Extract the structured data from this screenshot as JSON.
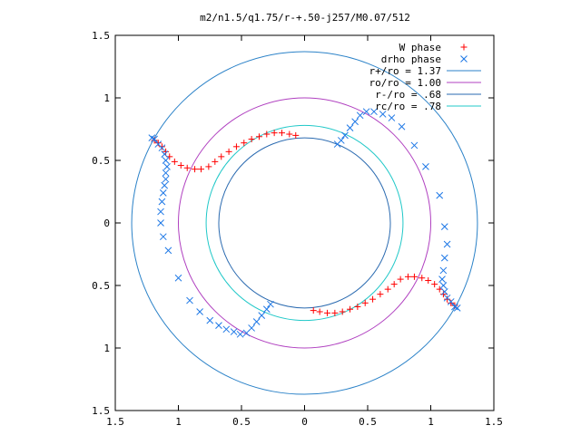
{
  "chart_data": {
    "type": "scatter",
    "title": "m2/n1.5/q1.75/r-+.50-j257/M0.07/512",
    "xlabel": "",
    "ylabel": "",
    "xlim": [
      -1.5,
      1.5
    ],
    "ylim": [
      -1.5,
      1.5
    ],
    "x_ticks": [
      -1.5,
      -1,
      -0.5,
      0,
      0.5,
      1,
      1.5
    ],
    "y_ticks": [
      -1.5,
      -1,
      -0.5,
      0,
      0.5,
      1,
      1.5
    ],
    "x_tick_labels": [
      "1.5",
      "1",
      "0.5",
      "0",
      "0.5",
      "1",
      "1.5"
    ],
    "y_tick_labels": [
      "1.5",
      "1",
      "0.5",
      "0",
      "0.5",
      "1",
      "1.5"
    ],
    "grid": false,
    "legend_position": "top-right",
    "circles": [
      {
        "name": "r+/ro = 1.37",
        "radius": 1.37,
        "color": "#2b82c8"
      },
      {
        "name": "ro/ro = 1.00",
        "radius": 1.0,
        "color": "#b040c0"
      },
      {
        "name": "r-/ro = .68",
        "radius": 0.68,
        "color": "#2a6ab0"
      },
      {
        "name": "rc/ro = .78",
        "radius": 0.78,
        "color": "#20c8c8"
      }
    ],
    "series": [
      {
        "name": "W phase",
        "marker": "plus",
        "color": "#ff0000",
        "points": [
          [
            -1.19,
            0.66
          ],
          [
            -1.16,
            0.64
          ],
          [
            -1.13,
            0.61
          ],
          [
            -1.1,
            0.57
          ],
          [
            -1.07,
            0.53
          ],
          [
            -1.03,
            0.49
          ],
          [
            -0.98,
            0.46
          ],
          [
            -0.93,
            0.44
          ],
          [
            -0.87,
            0.43
          ],
          [
            -0.82,
            0.43
          ],
          [
            -0.76,
            0.45
          ],
          [
            -0.71,
            0.49
          ],
          [
            -0.66,
            0.53
          ],
          [
            -0.6,
            0.57
          ],
          [
            -0.54,
            0.61
          ],
          [
            -0.48,
            0.64
          ],
          [
            -0.42,
            0.67
          ],
          [
            -0.36,
            0.69
          ],
          [
            -0.3,
            0.71
          ],
          [
            -0.24,
            0.72
          ],
          [
            -0.18,
            0.72
          ],
          [
            -0.12,
            0.71
          ],
          [
            -0.07,
            0.7
          ],
          [
            1.19,
            -0.66
          ],
          [
            1.16,
            -0.64
          ],
          [
            1.13,
            -0.61
          ],
          [
            1.1,
            -0.57
          ],
          [
            1.07,
            -0.53
          ],
          [
            1.03,
            -0.49
          ],
          [
            0.98,
            -0.46
          ],
          [
            0.93,
            -0.44
          ],
          [
            0.87,
            -0.43
          ],
          [
            0.82,
            -0.43
          ],
          [
            0.76,
            -0.45
          ],
          [
            0.71,
            -0.49
          ],
          [
            0.66,
            -0.53
          ],
          [
            0.6,
            -0.57
          ],
          [
            0.54,
            -0.61
          ],
          [
            0.48,
            -0.64
          ],
          [
            0.42,
            -0.67
          ],
          [
            0.36,
            -0.69
          ],
          [
            0.3,
            -0.71
          ],
          [
            0.24,
            -0.72
          ],
          [
            0.18,
            -0.72
          ],
          [
            0.12,
            -0.71
          ],
          [
            0.07,
            -0.7
          ]
        ]
      },
      {
        "name": "drho phase",
        "marker": "x",
        "color": "#1e78e6",
        "points": [
          [
            -1.21,
            0.68
          ],
          [
            -1.19,
            0.67
          ],
          [
            -1.16,
            0.63
          ],
          [
            -1.13,
            0.6
          ],
          [
            -1.11,
            0.55
          ],
          [
            -1.1,
            0.5
          ],
          [
            -1.09,
            0.45
          ],
          [
            -1.1,
            0.4
          ],
          [
            -1.1,
            0.35
          ],
          [
            -1.11,
            0.3
          ],
          [
            -1.12,
            0.24
          ],
          [
            -1.13,
            0.17
          ],
          [
            -1.14,
            0.09
          ],
          [
            -1.14,
            0.0
          ],
          [
            -1.12,
            -0.11
          ],
          [
            -1.08,
            -0.22
          ],
          [
            -1.0,
            -0.44
          ],
          [
            -0.91,
            -0.62
          ],
          [
            -0.83,
            -0.71
          ],
          [
            -0.75,
            -0.78
          ],
          [
            -0.68,
            -0.82
          ],
          [
            -0.62,
            -0.85
          ],
          [
            -0.56,
            -0.87
          ],
          [
            -0.51,
            -0.89
          ],
          [
            -0.46,
            -0.88
          ],
          [
            -0.42,
            -0.84
          ],
          [
            -0.38,
            -0.79
          ],
          [
            -0.34,
            -0.74
          ],
          [
            -0.3,
            -0.69
          ],
          [
            -0.27,
            -0.65
          ],
          [
            1.21,
            -0.68
          ],
          [
            1.19,
            -0.67
          ],
          [
            1.16,
            -0.63
          ],
          [
            1.13,
            -0.6
          ],
          [
            1.11,
            -0.55
          ],
          [
            1.1,
            -0.5
          ],
          [
            1.09,
            -0.45
          ],
          [
            1.1,
            -0.38
          ],
          [
            1.11,
            -0.28
          ],
          [
            1.13,
            -0.17
          ],
          [
            1.11,
            -0.03
          ],
          [
            1.07,
            0.22
          ],
          [
            0.96,
            0.45
          ],
          [
            0.87,
            0.62
          ],
          [
            0.77,
            0.77
          ],
          [
            0.69,
            0.84
          ],
          [
            0.62,
            0.87
          ],
          [
            0.55,
            0.89
          ],
          [
            0.49,
            0.89
          ],
          [
            0.44,
            0.86
          ],
          [
            0.4,
            0.81
          ],
          [
            0.36,
            0.76
          ],
          [
            0.32,
            0.7
          ],
          [
            0.29,
            0.66
          ],
          [
            0.26,
            0.63
          ]
        ]
      }
    ]
  }
}
